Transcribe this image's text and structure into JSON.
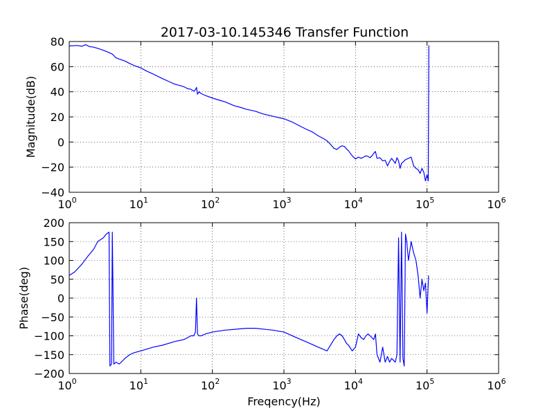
{
  "chart_data": [
    {
      "type": "line",
      "title": "2017-03-10.145346 Transfer Function",
      "xlabel": "",
      "ylabel": "Magnitude(dB)",
      "xscale": "log",
      "xlim": [
        1,
        1000000
      ],
      "ylim": [
        -40,
        80
      ],
      "grid": true,
      "xticks": [
        1,
        10,
        100,
        1000,
        10000,
        100000,
        1000000
      ],
      "xtick_labels": [
        {
          "base": "10",
          "exp": "0"
        },
        {
          "base": "10",
          "exp": "1"
        },
        {
          "base": "10",
          "exp": "2"
        },
        {
          "base": "10",
          "exp": "3"
        },
        {
          "base": "10",
          "exp": "4"
        },
        {
          "base": "10",
          "exp": "5"
        },
        {
          "base": "10",
          "exp": "6"
        }
      ],
      "yticks": [
        -40,
        -20,
        0,
        20,
        40,
        60,
        80
      ],
      "ytick_labels": [
        "−40",
        "−20",
        "0",
        "20",
        "40",
        "60",
        "80"
      ],
      "color": "#0000ff",
      "series": [
        {
          "x": [
            1,
            1.3,
            1.5,
            1.7,
            1.9,
            2.2,
            2.5,
            3,
            3.5,
            4,
            4.5,
            5,
            6,
            7,
            8,
            10,
            12,
            15,
            20,
            25,
            30,
            35,
            40,
            45,
            50,
            55,
            58,
            60,
            62,
            65,
            70,
            80,
            100,
            130,
            150,
            200,
            250,
            300,
            400,
            500,
            700,
            1000,
            1300,
            1700,
            2000,
            2500,
            3000,
            3500,
            4000,
            4500,
            5000,
            5500,
            6000,
            6500,
            7000,
            7500,
            8000,
            9000,
            10000,
            11000,
            12000,
            13000,
            14000,
            15000,
            16000,
            17000,
            18000,
            19000,
            20000,
            22000,
            24000,
            26000,
            28000,
            30000,
            32000,
            34000,
            36000,
            38000,
            40000,
            42000,
            44000,
            46000,
            48000,
            50000,
            55000,
            60000,
            65000,
            70000,
            75000,
            80000,
            85000,
            90000,
            95000,
            100000,
            104000,
            106000
          ],
          "y": [
            76.5,
            76.8,
            76.2,
            77.5,
            76,
            75.5,
            74.5,
            73,
            71.5,
            70,
            67,
            66,
            64.5,
            62.5,
            61,
            59,
            56.5,
            54,
            50.5,
            48,
            46,
            45,
            44,
            42.5,
            42,
            40.5,
            41.5,
            43.5,
            38,
            40,
            38.5,
            37,
            35,
            33,
            32,
            29,
            27.5,
            26,
            24.5,
            22.5,
            20.5,
            18.5,
            16,
            12.5,
            10.5,
            8,
            5,
            3,
            1,
            -2,
            -5,
            -6,
            -4,
            -3,
            -3.5,
            -5.5,
            -7,
            -11,
            -13.5,
            -12,
            -13,
            -12,
            -11,
            -11.5,
            -12.5,
            -11,
            -9,
            -7.5,
            -13,
            -12.5,
            -15,
            -14.5,
            -19,
            -15.5,
            -13,
            -15,
            -17,
            -12.5,
            -15,
            -21,
            -17,
            -16,
            -15,
            -14,
            -13,
            -12,
            -19,
            -21,
            -22,
            -25,
            -21,
            -24,
            -31,
            -26,
            -31,
            77
          ]
        }
      ]
    },
    {
      "type": "line",
      "title": "",
      "xlabel": "Freqency(Hz)",
      "ylabel": "Phase(deg)",
      "xscale": "log",
      "xlim": [
        1,
        1000000
      ],
      "ylim": [
        -200,
        200
      ],
      "grid": true,
      "xticks": [
        1,
        10,
        100,
        1000,
        10000,
        100000,
        1000000
      ],
      "xtick_labels": [
        {
          "base": "10",
          "exp": "0"
        },
        {
          "base": "10",
          "exp": "1"
        },
        {
          "base": "10",
          "exp": "2"
        },
        {
          "base": "10",
          "exp": "3"
        },
        {
          "base": "10",
          "exp": "4"
        },
        {
          "base": "10",
          "exp": "5"
        },
        {
          "base": "10",
          "exp": "6"
        }
      ],
      "yticks": [
        -200,
        -150,
        -100,
        -50,
        0,
        50,
        100,
        150,
        200
      ],
      "ytick_labels": [
        "−200",
        "−150",
        "−100",
        "−50",
        "0",
        "50",
        "100",
        "150",
        "200"
      ],
      "color": "#0000ff",
      "series": [
        {
          "x": [
            1,
            1.2,
            1.5,
            1.8,
            2.2,
            2.5,
            3,
            3.3,
            3.6,
            3.7,
            3.9,
            4,
            4.2,
            4.5,
            5,
            6,
            7,
            8,
            10,
            15,
            20,
            30,
            40,
            45,
            50,
            55,
            58,
            60,
            62,
            65,
            70,
            80,
            100,
            150,
            200,
            300,
            400,
            500,
            700,
            1000,
            1500,
            2000,
            3000,
            4000,
            5000,
            5500,
            6000,
            6500,
            7000,
            7500,
            8000,
            9000,
            10000,
            11000,
            12000,
            13000,
            14000,
            15000,
            16000,
            17000,
            18000,
            19000,
            20000,
            22000,
            24000,
            26000,
            28000,
            30000,
            32000,
            34000,
            36000,
            38000,
            40000,
            42000,
            44000,
            46000,
            48000,
            50000,
            52000,
            55000,
            60000,
            65000,
            70000,
            75000,
            80000,
            85000,
            90000,
            95000,
            100000,
            105000
          ],
          "y": [
            60,
            70,
            90,
            110,
            130,
            150,
            160,
            170,
            175,
            -180,
            -175,
            175,
            -175,
            -170,
            -175,
            -160,
            -150,
            -145,
            -140,
            -130,
            -125,
            -115,
            -110,
            -105,
            -100,
            -100,
            -90,
            0,
            -95,
            -100,
            -100,
            -95,
            -90,
            -85,
            -83,
            -80,
            -80,
            -82,
            -85,
            -90,
            -105,
            -115,
            -130,
            -140,
            -110,
            -100,
            -95,
            -100,
            -110,
            -120,
            -125,
            -140,
            -130,
            -95,
            -105,
            -110,
            -100,
            -95,
            -100,
            -105,
            -110,
            -95,
            -150,
            -170,
            -130,
            -170,
            -155,
            -170,
            -160,
            -165,
            -170,
            -150,
            160,
            -170,
            175,
            -160,
            -180,
            170,
            150,
            100,
            150,
            120,
            100,
            60,
            0,
            50,
            20,
            40,
            -40,
            60
          ]
        }
      ]
    }
  ]
}
